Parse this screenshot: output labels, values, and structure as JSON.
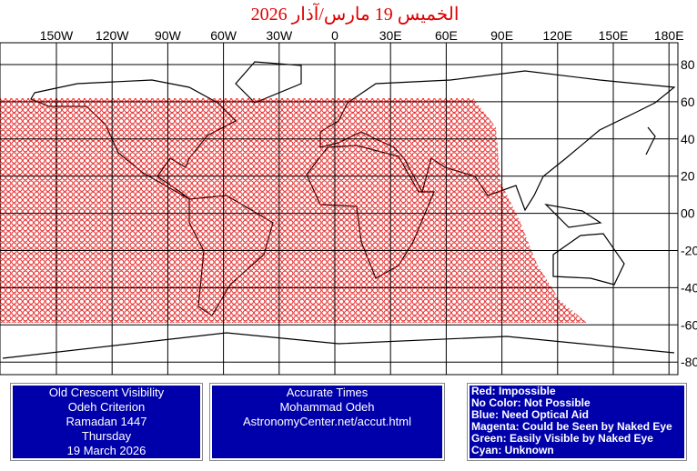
{
  "header": {
    "title": "الخميس 19 مارس/آذار 2026"
  },
  "longitude_labels": [
    "150W",
    "120W",
    "90W",
    "60W",
    "30W",
    "0",
    "30E",
    "60E",
    "90E",
    "120E",
    "150E",
    "180E"
  ],
  "latitude_labels": [
    "80",
    "60",
    "40",
    "20",
    "00",
    "-20",
    "-40",
    "-60",
    "-80"
  ],
  "boxes": [
    {
      "lines": [
        "Old Crescent Visibility",
        "Odeh Criterion",
        "Ramadan 1447",
        "Thursday",
        "19 March 2026"
      ]
    },
    {
      "lines": [
        "Accurate Times",
        "Mohammad Odeh",
        "AstronomyCenter.net/accut.html"
      ]
    },
    {
      "lines": [
        "Red: Impossible",
        "No Color: Not Possible",
        "Blue: Need Optical Aid",
        "Magenta: Could be Seen by Naked Eye",
        "Green: Easily Visible by Naked Eye",
        "Cyan: Unknown"
      ]
    }
  ]
}
